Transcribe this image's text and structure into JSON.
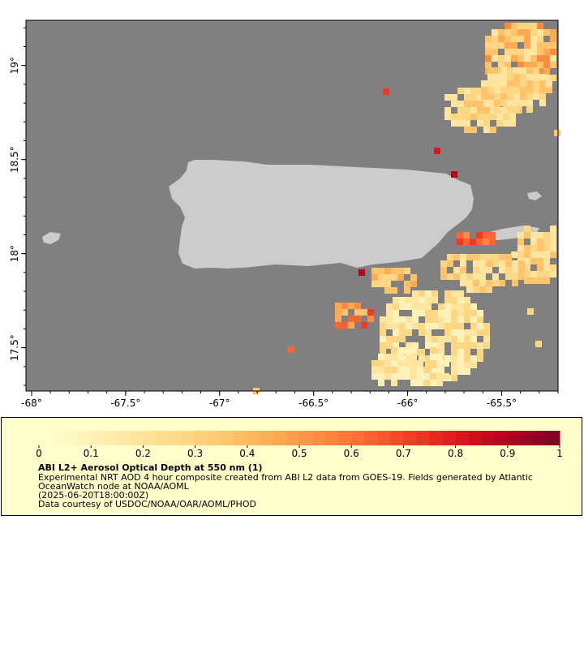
{
  "map": {
    "lat_ticks": [
      {
        "value": 19,
        "label": "19°"
      },
      {
        "value": 18.5,
        "label": "18.5°"
      },
      {
        "value": 18,
        "label": "18°"
      },
      {
        "value": 17.5,
        "label": "17.5°"
      }
    ],
    "lon_ticks": [
      {
        "value": -68,
        "label": "-68°"
      },
      {
        "value": -67.5,
        "label": "-67.5°"
      },
      {
        "value": -67,
        "label": "-67°"
      },
      {
        "value": -66.5,
        "label": "-66.5°"
      },
      {
        "value": -66,
        "label": "-66°"
      },
      {
        "value": -65.5,
        "label": "-65.5°"
      }
    ],
    "lon_range": [
      -68.03,
      -65.2
    ],
    "lat_range": [
      17.27,
      19.24
    ],
    "colors": {
      "ocean": "#808080",
      "land": "#cccccc",
      "frame": "#000000"
    }
  },
  "colorbar": {
    "tick_labels": [
      "0",
      "0.1",
      "0.2",
      "0.3",
      "0.4",
      "0.5",
      "0.6",
      "0.7",
      "0.8",
      "0.9",
      "1"
    ],
    "min": 0,
    "max": 1,
    "colors": [
      "#ffffcc",
      "#fff2b8",
      "#ffe59f",
      "#fed785",
      "#fec46b",
      "#fdaa52",
      "#fd8b42",
      "#fb6533",
      "#ee3b25",
      "#d8171e",
      "#b5001e",
      "#800026"
    ]
  },
  "legend": {
    "title": "ABI L2+ Aerosol Optical Depth at 550 nm (1)",
    "line1": "Experimental NRT AOD 4 hour composite created from ABI L2 data from GOES-19. Fields generated by Atlantic",
    "line2": "OceanWatch node at NOAA/AOML",
    "line3": "(2025-06-20T18:00:00Z)",
    "line4": "Data courtesy of USDOC/NOAA/OAR/AOML/PHOD"
  }
}
